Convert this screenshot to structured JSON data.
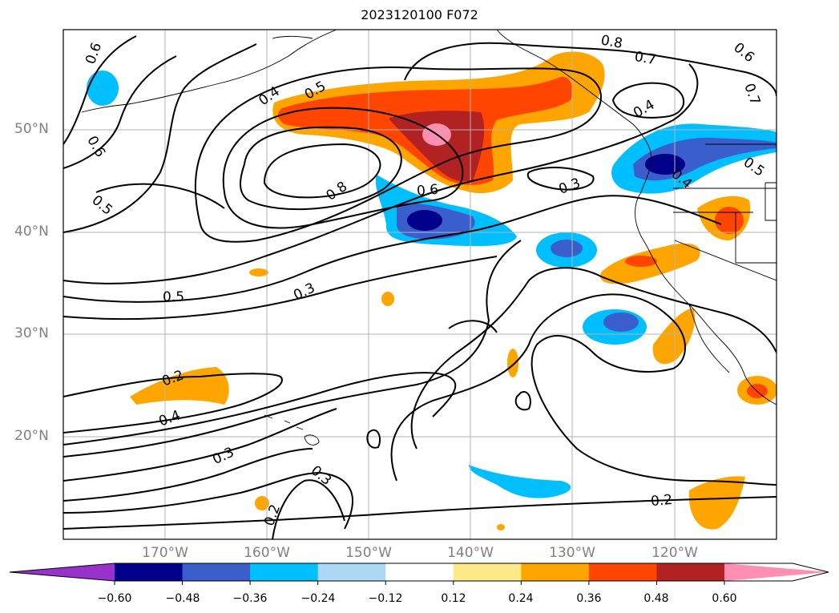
{
  "title": "2023120100 F072",
  "map": {
    "projection": "lat-lon",
    "lon_range": [
      -180,
      -110
    ],
    "lat_range": [
      10,
      60
    ],
    "grid": true,
    "lat_labels": [
      "50°N",
      "40°N",
      "30°N",
      "20°N"
    ],
    "lon_labels": [
      "170°W",
      "160°W",
      "150°W",
      "140°W",
      "130°W",
      "120°W"
    ]
  },
  "contour_labels": [
    "0.6",
    "0.4",
    "0.5",
    "0.8",
    "0.7",
    "0.6",
    "0.4",
    "0.7",
    "0.8",
    "0.6",
    "0.5",
    "0.6",
    "0.3",
    "0.4",
    "0.5",
    "0.5",
    "0.3",
    "0.2",
    "0.4",
    "0.3",
    "0.3",
    "0.2",
    "0.2"
  ],
  "colorbar": {
    "ticks": [
      "−0.60",
      "−0.48",
      "−0.36",
      "−0.24",
      "−0.12",
      "0.12",
      "0.24",
      "0.36",
      "0.48",
      "0.60"
    ],
    "extend": "both",
    "colors": [
      "#9932cc",
      "#00008b",
      "#3a5fcd",
      "#00bfff",
      "#add8f5",
      "#ffffff",
      "#ffea8a",
      "#ffa500",
      "#ff4500",
      "#b22222",
      "#ff8fb2"
    ]
  }
}
